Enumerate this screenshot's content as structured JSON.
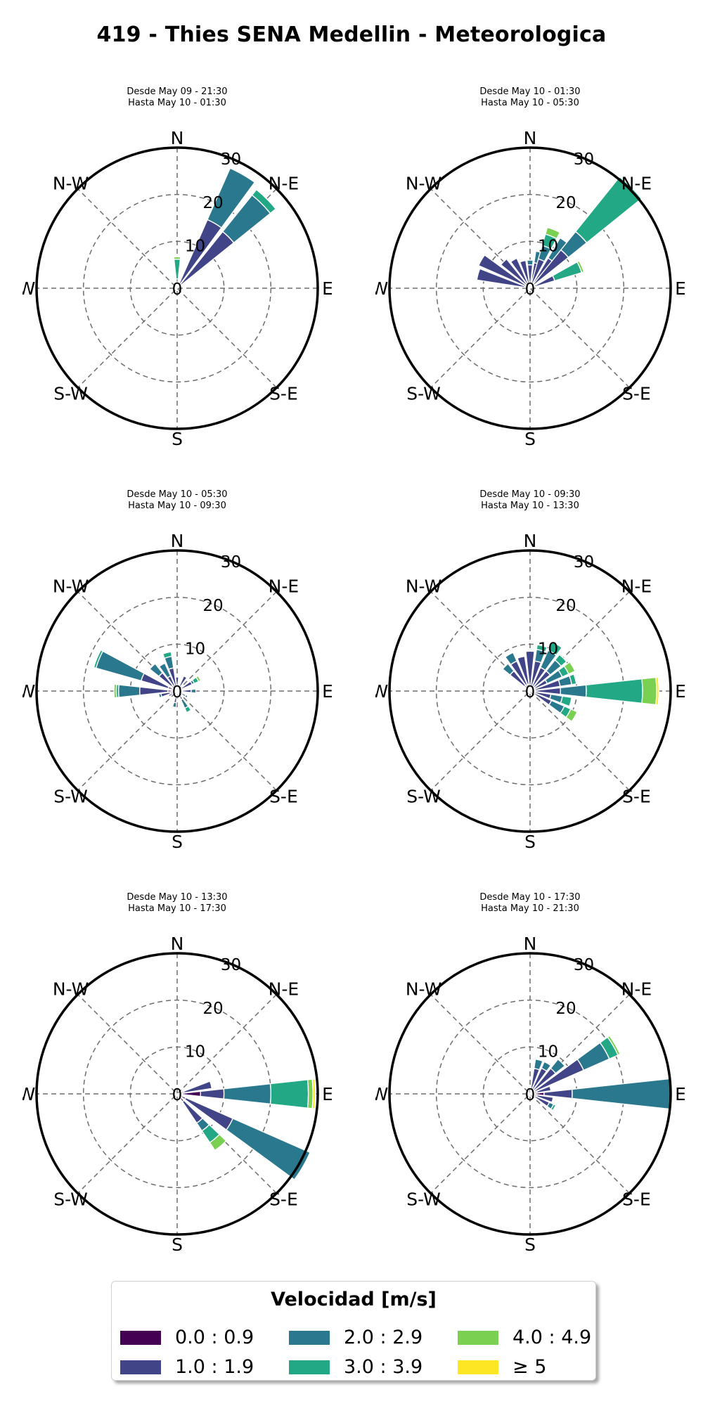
{
  "title": "419 - Thies SENA Medellin - Meteorologica",
  "directions": [
    "N",
    "N-E",
    "E",
    "S-E",
    "S",
    "S-W",
    "W",
    "N-W"
  ],
  "radial_ticks": [
    "0",
    "10",
    "20",
    "30"
  ],
  "legend": {
    "title": "Velocidad [m/s]",
    "items": [
      {
        "label": "0.0 : 0.9",
        "color": "#440154"
      },
      {
        "label": "1.0 : 1.9",
        "color": "#414487"
      },
      {
        "label": "2.0 : 2.9",
        "color": "#2a788e"
      },
      {
        "label": "3.0 : 3.9",
        "color": "#22a884"
      },
      {
        "label": "4.0 : 4.9",
        "color": "#7ad151"
      },
      {
        "label": "≥ 5",
        "color": "#fde725"
      }
    ]
  },
  "chart_data": [
    {
      "type": "windrose",
      "subtitle_1": "Desde May 09 - 21:30",
      "subtitle_2": "Hasta May 10 - 01:30",
      "rlim": [
        0,
        30
      ],
      "bins": [
        {
          "dir": 0,
          "values": [
            0.5,
            1.5,
            0,
            4.2,
            0.5,
            0
          ]
        },
        {
          "dir": 30,
          "values": [
            1.0,
            15.0,
            12.0,
            0,
            0,
            0
          ]
        },
        {
          "dir": 45,
          "values": [
            1.0,
            14.5,
            10.0,
            1.5,
            0,
            0
          ]
        }
      ]
    },
    {
      "type": "windrose",
      "subtitle_1": "Desde May 10 - 01:30",
      "subtitle_2": "Hasta May 10 - 05:30",
      "rlim": [
        0,
        30
      ],
      "bins": [
        {
          "dir": 0,
          "values": [
            0.5,
            4.5,
            1.0,
            0,
            0,
            0
          ]
        },
        {
          "dir": 15,
          "values": [
            0.5,
            5.0,
            2.5,
            0,
            0,
            0
          ]
        },
        {
          "dir": 22,
          "values": [
            0.5,
            6.0,
            3.0,
            2.5,
            1.5,
            0
          ]
        },
        {
          "dir": 37,
          "values": [
            0.5,
            7.0,
            5.0,
            0,
            0,
            0
          ]
        },
        {
          "dir": 45,
          "values": [
            0.5,
            10.0,
            5.0,
            15.0,
            0,
            0
          ]
        },
        {
          "dir": 67,
          "values": [
            0.5,
            5.0,
            0,
            6.0,
            0.5,
            0
          ]
        },
        {
          "dir": 300,
          "values": [
            0.5,
            11.5,
            0,
            0,
            0,
            0
          ]
        },
        {
          "dir": 285,
          "values": [
            0.5,
            11.0,
            0,
            0,
            0,
            0
          ]
        },
        {
          "dir": 315,
          "values": [
            0.5,
            7.5,
            0,
            0,
            0,
            0
          ]
        },
        {
          "dir": 330,
          "values": [
            0.5,
            6.5,
            0,
            0,
            0,
            0
          ]
        },
        {
          "dir": 345,
          "values": [
            0.5,
            5.5,
            0,
            0,
            0,
            0
          ]
        }
      ]
    },
    {
      "type": "windrose",
      "subtitle_1": "Desde May 10 - 05:30",
      "subtitle_2": "Hasta May 10 - 09:30",
      "rlim": [
        0,
        30
      ],
      "bins": [
        {
          "dir": 292,
          "values": [
            2.0,
            6.0,
            10.0,
            0.5,
            0,
            0
          ]
        },
        {
          "dir": 270,
          "values": [
            2.0,
            6.0,
            4.5,
            0.5,
            0.5,
            0
          ]
        },
        {
          "dir": 255,
          "values": [
            1.5,
            2.0,
            0.5,
            0,
            0,
            0
          ]
        },
        {
          "dir": 240,
          "values": [
            1.0,
            1.0,
            0,
            0,
            0,
            0
          ]
        },
        {
          "dir": 315,
          "values": [
            1.5,
            3.5,
            2.5,
            0,
            0,
            0
          ]
        },
        {
          "dir": 330,
          "values": [
            1.0,
            2.5,
            3.0,
            0,
            0,
            0
          ]
        },
        {
          "dir": 345,
          "values": [
            1.0,
            4.0,
            2.5,
            1.0,
            0,
            0
          ]
        },
        {
          "dir": 0,
          "values": [
            0.5,
            2.5,
            0,
            0,
            0,
            0
          ]
        },
        {
          "dir": 30,
          "values": [
            0.5,
            3.0,
            0,
            0,
            0,
            0
          ]
        },
        {
          "dir": 60,
          "values": [
            0.5,
            3.0,
            0.5,
            1.0,
            0.5,
            0
          ]
        },
        {
          "dir": 90,
          "values": [
            0.5,
            2.5,
            1.0,
            0,
            0,
            0
          ]
        },
        {
          "dir": 120,
          "values": [
            0.5,
            1.5,
            0.5,
            0,
            0,
            0
          ]
        },
        {
          "dir": 150,
          "values": [
            0.5,
            1.5,
            2.0,
            1.0,
            0,
            0
          ]
        },
        {
          "dir": 190,
          "values": [
            0.5,
            2.0,
            1.0,
            0,
            0,
            0
          ]
        }
      ]
    },
    {
      "type": "windrose",
      "subtitle_1": "Desde May 10 - 09:30",
      "subtitle_2": "Hasta May 10 - 13:30",
      "rlim": [
        0,
        30
      ],
      "bins": [
        {
          "dir": 345,
          "values": [
            1.5,
            6.0,
            0,
            0,
            0,
            0
          ]
        },
        {
          "dir": 330,
          "values": [
            1.5,
            5.5,
            2.0,
            0,
            0,
            0
          ]
        },
        {
          "dir": 315,
          "values": [
            1.5,
            4.0,
            2.0,
            0,
            0,
            0
          ]
        },
        {
          "dir": 0,
          "values": [
            1.0,
            7.5,
            0,
            0,
            0,
            0
          ]
        },
        {
          "dir": 15,
          "values": [
            1.0,
            5.5,
            2.5,
            1.0,
            0,
            0
          ]
        },
        {
          "dir": 30,
          "values": [
            1.0,
            4.5,
            4.0,
            2.0,
            0,
            0
          ]
        },
        {
          "dir": 45,
          "values": [
            1.0,
            4.5,
            3.0,
            1.5,
            0,
            0
          ]
        },
        {
          "dir": 60,
          "values": [
            1.0,
            3.0,
            3.5,
            1.5,
            1.5,
            0
          ]
        },
        {
          "dir": 75,
          "values": [
            1.0,
            5.5,
            2.5,
            1.0,
            0,
            0
          ]
        },
        {
          "dir": 90,
          "values": [
            1.0,
            5.5,
            5.5,
            12.0,
            3.0,
            0.5
          ]
        },
        {
          "dir": 105,
          "values": [
            1.0,
            3.5,
            2.5,
            2.0,
            0,
            0
          ]
        },
        {
          "dir": 120,
          "values": [
            1.0,
            4.0,
            3.0,
            1.5,
            1.5,
            0
          ]
        }
      ]
    },
    {
      "type": "windrose",
      "subtitle_1": "Desde May 10 - 13:30",
      "subtitle_2": "Hasta May 10 - 17:30",
      "rlim": [
        0,
        30
      ],
      "bins": [
        {
          "dir": 90,
          "values": [
            5.0,
            5.0,
            10.0,
            8.0,
            1.0,
            0.5
          ]
        },
        {
          "dir": 120,
          "values": [
            2.0,
            11.0,
            18.0,
            0,
            0,
            0
          ]
        },
        {
          "dir": 140,
          "values": [
            2.0,
            5.5,
            2.0,
            3.0,
            2.0,
            0
          ]
        },
        {
          "dir": 75,
          "values": [
            1.5,
            6.0,
            0,
            0,
            0,
            0
          ]
        }
      ]
    },
    {
      "type": "windrose",
      "subtitle_1": "Desde May 10 - 17:30",
      "subtitle_2": "Hasta May 10 - 21:30",
      "rlim": [
        0,
        30
      ],
      "bins": [
        {
          "dir": 90,
          "values": [
            3.0,
            6.0,
            21.0,
            0,
            0,
            0
          ]
        },
        {
          "dir": 60,
          "values": [
            1.0,
            11.5,
            6.0,
            2.0,
            0.5,
            0
          ]
        },
        {
          "dir": 45,
          "values": [
            1.0,
            6.0,
            2.5,
            0,
            0,
            0
          ]
        },
        {
          "dir": 30,
          "values": [
            1.0,
            5.0,
            1.5,
            0,
            0,
            0
          ]
        },
        {
          "dir": 15,
          "values": [
            1.0,
            4.5,
            2.0,
            0,
            0,
            0
          ]
        },
        {
          "dir": 75,
          "values": [
            1.5,
            3.0,
            0,
            0,
            0,
            0
          ]
        },
        {
          "dir": 105,
          "values": [
            1.5,
            3.5,
            0,
            0,
            0,
            0
          ]
        },
        {
          "dir": 120,
          "values": [
            1.0,
            3.5,
            1.0,
            0.5,
            0,
            0
          ]
        }
      ]
    }
  ]
}
